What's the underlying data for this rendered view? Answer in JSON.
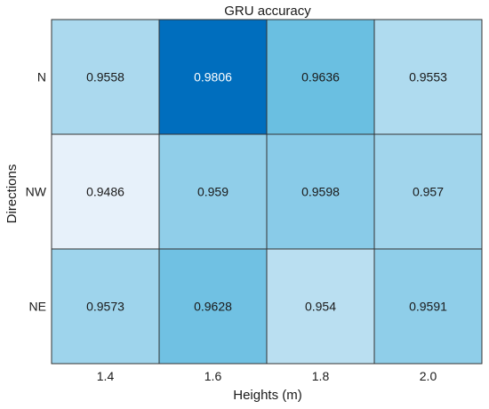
{
  "chart_data": {
    "type": "heatmap",
    "title": "GRU accuracy",
    "xlabel": "Heights (m)",
    "ylabel": "Directions",
    "x_categories": [
      "1.4",
      "1.6",
      "1.8",
      "2.0"
    ],
    "y_categories": [
      "N",
      "NW",
      "NE"
    ],
    "values": [
      [
        0.9558,
        0.9806,
        0.9636,
        0.9553
      ],
      [
        0.9486,
        0.959,
        0.9598,
        0.957
      ],
      [
        0.9573,
        0.9628,
        0.954,
        0.9591
      ]
    ],
    "value_labels": [
      [
        "0.9558",
        "0.9806",
        "0.9636",
        "0.9553"
      ],
      [
        "0.9486",
        "0.959",
        "0.9598",
        "0.957"
      ],
      [
        "0.9573",
        "0.9628",
        "0.954",
        "0.9591"
      ]
    ],
    "colormap": {
      "low": "#e7f1fa",
      "mid": "#54b6dd",
      "high": "#006ebe"
    },
    "grid_color": "#333333",
    "label_color_light": "#ffffff",
    "label_color_dark": "#1a1a1a"
  }
}
